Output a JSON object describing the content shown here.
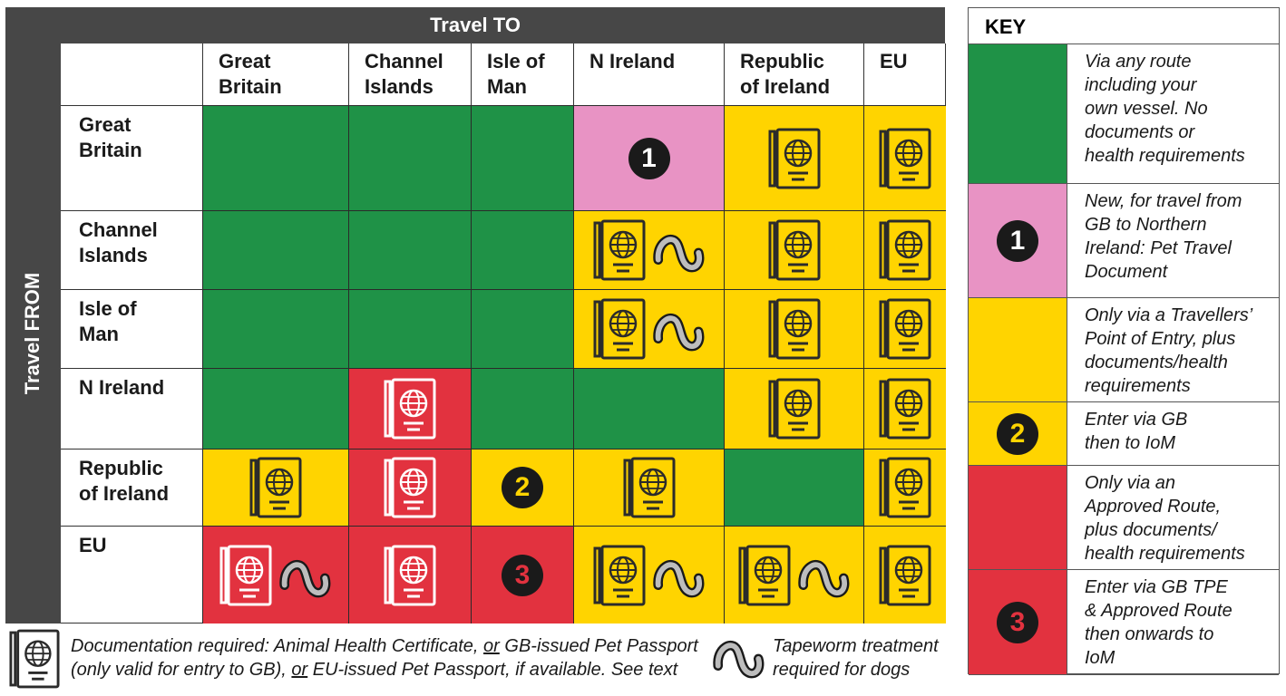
{
  "header": {
    "to_label": "Travel TO",
    "from_label": "Travel FROM"
  },
  "columns": [
    "Great Britain",
    "Channel Islands",
    "Isle of Man",
    "N Ireland",
    "Republic of Ireland",
    "EU"
  ],
  "column_lines": [
    [
      "Great",
      "Britain"
    ],
    [
      "Channel",
      "Islands"
    ],
    [
      "Isle of",
      "Man"
    ],
    [
      "N Ireland",
      ""
    ],
    [
      "Republic",
      "of Ireland"
    ],
    [
      "EU",
      ""
    ]
  ],
  "rows": [
    {
      "label_lines": [
        "Great",
        "Britain"
      ],
      "label": "Great Britain",
      "cells": [
        {
          "color": "green"
        },
        {
          "color": "green"
        },
        {
          "color": "green"
        },
        {
          "color": "pink",
          "badge": "1"
        },
        {
          "color": "yellow",
          "icons": [
            "passport-dark"
          ]
        },
        {
          "color": "yellow",
          "icons": [
            "passport-dark"
          ]
        }
      ]
    },
    {
      "label_lines": [
        "Channel",
        "Islands"
      ],
      "label": "Channel Islands",
      "cells": [
        {
          "color": "green"
        },
        {
          "color": "green"
        },
        {
          "color": "green"
        },
        {
          "color": "yellow",
          "icons": [
            "passport-dark",
            "tapeworm"
          ]
        },
        {
          "color": "yellow",
          "icons": [
            "passport-dark"
          ]
        },
        {
          "color": "yellow",
          "icons": [
            "passport-dark"
          ]
        }
      ]
    },
    {
      "label_lines": [
        "Isle of",
        "Man"
      ],
      "label": "Isle of Man",
      "cells": [
        {
          "color": "green"
        },
        {
          "color": "green"
        },
        {
          "color": "green"
        },
        {
          "color": "yellow",
          "icons": [
            "passport-dark",
            "tapeworm"
          ]
        },
        {
          "color": "yellow",
          "icons": [
            "passport-dark"
          ]
        },
        {
          "color": "yellow",
          "icons": [
            "passport-dark"
          ]
        }
      ]
    },
    {
      "label_lines": [
        "N Ireland",
        ""
      ],
      "label": "N Ireland",
      "cells": [
        {
          "color": "green"
        },
        {
          "color": "red",
          "icons": [
            "passport-light"
          ]
        },
        {
          "color": "green"
        },
        {
          "color": "green"
        },
        {
          "color": "yellow",
          "icons": [
            "passport-dark"
          ]
        },
        {
          "color": "yellow",
          "icons": [
            "passport-dark"
          ]
        }
      ]
    },
    {
      "label_lines": [
        "Republic",
        "of Ireland"
      ],
      "label": "Republic of Ireland",
      "cells": [
        {
          "color": "yellow",
          "icons": [
            "passport-dark"
          ]
        },
        {
          "color": "red",
          "icons": [
            "passport-light"
          ]
        },
        {
          "color": "yellow",
          "badge": "2"
        },
        {
          "color": "yellow",
          "icons": [
            "passport-dark"
          ]
        },
        {
          "color": "green"
        },
        {
          "color": "yellow",
          "icons": [
            "passport-dark"
          ]
        }
      ]
    },
    {
      "label_lines": [
        "EU",
        ""
      ],
      "label": "EU",
      "cells": [
        {
          "color": "red",
          "icons": [
            "passport-light",
            "tapeworm"
          ]
        },
        {
          "color": "red",
          "icons": [
            "passport-light"
          ]
        },
        {
          "color": "red",
          "badge": "3"
        },
        {
          "color": "yellow",
          "icons": [
            "passport-dark",
            "tapeworm"
          ]
        },
        {
          "color": "yellow",
          "icons": [
            "passport-dark",
            "tapeworm"
          ]
        },
        {
          "color": "yellow",
          "icons": [
            "passport-dark"
          ]
        }
      ]
    }
  ],
  "key": {
    "title": "KEY",
    "items": [
      {
        "color": "green",
        "badge": "",
        "lines": [
          "Via any route",
          "including your",
          "own vessel. No",
          "documents or",
          "health requirements"
        ]
      },
      {
        "color": "pink",
        "badge": "1",
        "lines": [
          "New, for travel from",
          "GB to Northern",
          "Ireland: Pet Travel",
          "Document"
        ]
      },
      {
        "color": "yellow",
        "badge": "",
        "lines": [
          "Only via a Travellers’",
          "Point of Entry, plus",
          "documents/health",
          "requirements"
        ]
      },
      {
        "color": "yellow",
        "badge": "2",
        "lines": [
          "Enter via GB",
          "then to IoM"
        ]
      },
      {
        "color": "red",
        "badge": "",
        "lines": [
          "Only via an",
          "Approved Route,",
          "plus documents/",
          "health requirements"
        ]
      },
      {
        "color": "red",
        "badge": "3",
        "lines": [
          "Enter via GB TPE",
          "& Approved Route",
          "then onwards to",
          "IoM"
        ]
      }
    ]
  },
  "footer": {
    "doc_line1_a": "Documentation required: Animal Health Certificate, ",
    "doc_line1_or": "or",
    "doc_line1_b": " GB-issued Pet Passport",
    "doc_line2_a": "(only valid for entry to GB), ",
    "doc_line2_or": "or",
    "doc_line2_b": " EU-issued Pet Passport, if available. See text",
    "tapeworm_line1": "Tapeworm treatment",
    "tapeworm_line2": "required for dogs"
  },
  "colors": {
    "green": "#1f9247",
    "pink": "#e893c4",
    "yellow": "#ffd400",
    "red": "#e2323f",
    "dark": "#474747"
  },
  "icons": [
    "passport-icon",
    "tapeworm-icon",
    "number-badge-icon"
  ]
}
